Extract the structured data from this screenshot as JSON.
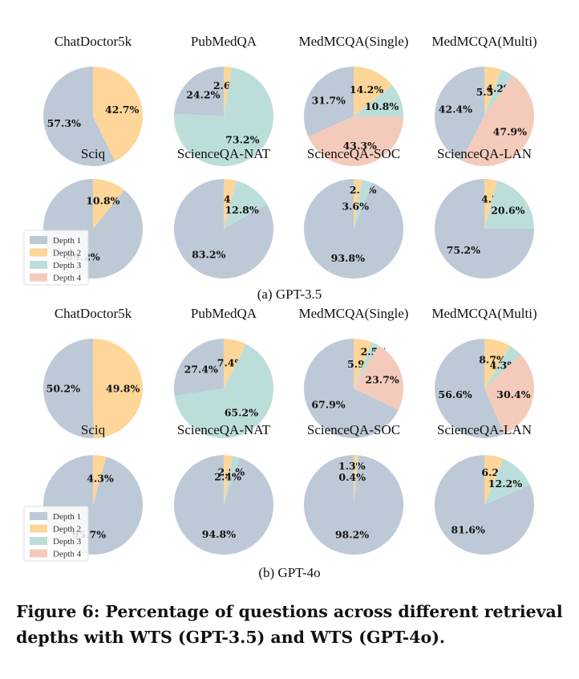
{
  "colors": {
    "Depth 1": "#bdc9d6",
    "Depth 2": "#fed699",
    "Depth 3": "#bcdedb",
    "Depth 4": "#f4cbbb"
  },
  "legend_labels": [
    "Depth 1",
    "Depth 2",
    "Depth 3",
    "Depth 4"
  ],
  "subcaptions": [
    "(a)  GPT-3.5",
    "(b)  GPT-4o"
  ],
  "caption": "Figure 6: Percentage of questions across different retrieval depths with WTS (GPT-3.5) and WTS (GPT-4o).",
  "chart_data": [
    {
      "type": "pie",
      "group": "GPT-3.5",
      "title": "ChatDoctor5k",
      "labels": [
        "Depth 1",
        "Depth 2"
      ],
      "values": [
        57.3,
        42.7
      ],
      "value_labels": [
        "57.3%",
        "42.7%"
      ]
    },
    {
      "type": "pie",
      "group": "GPT-3.5",
      "title": "PubMedQA",
      "labels": [
        "Depth 1",
        "Depth 2",
        "Depth 3"
      ],
      "values": [
        24.2,
        2.6,
        73.2
      ],
      "value_labels": [
        "24.2%",
        "2.6%",
        "73.2%"
      ]
    },
    {
      "type": "pie",
      "group": "GPT-3.5",
      "title": "MedMCQA(Single)",
      "labels": [
        "Depth 1",
        "Depth 2",
        "Depth 3",
        "Depth 4"
      ],
      "values": [
        31.7,
        14.2,
        10.8,
        43.3
      ],
      "value_labels": [
        "31.7%",
        "14.2%",
        "10.8%",
        "43.3%"
      ]
    },
    {
      "type": "pie",
      "group": "GPT-3.5",
      "title": "MedMCQA(Multi)",
      "labels": [
        "Depth 1",
        "Depth 2",
        "Depth 3",
        "Depth 4"
      ],
      "values": [
        42.4,
        5.5,
        4.2,
        47.9
      ],
      "value_labels": [
        "42.4%",
        "5.5%",
        "4.2%",
        "47.9%"
      ]
    },
    {
      "type": "pie",
      "group": "GPT-3.5",
      "title": "Sciq",
      "labels": [
        "Depth 1",
        "Depth 2"
      ],
      "values": [
        89.2,
        10.8
      ],
      "value_labels": [
        "89.2%",
        "10.8%"
      ],
      "legend": "lower-left"
    },
    {
      "type": "pie",
      "group": "GPT-3.5",
      "title": "ScienceQA-NAT",
      "labels": [
        "Depth 1",
        "Depth 2",
        "Depth 3"
      ],
      "values": [
        83.2,
        4.0,
        12.8
      ],
      "value_labels": [
        "83.2%",
        "4.0%",
        "12.8%"
      ]
    },
    {
      "type": "pie",
      "group": "GPT-3.5",
      "title": "ScienceQA-SOC",
      "labels": [
        "Depth 1",
        "Depth 2",
        "Depth 3"
      ],
      "values": [
        93.8,
        2.6,
        3.6
      ],
      "value_labels": [
        "93.8%",
        "2.6%",
        "3.6%"
      ]
    },
    {
      "type": "pie",
      "group": "GPT-3.5",
      "title": "ScienceQA-LAN",
      "labels": [
        "Depth 1",
        "Depth 2",
        "Depth 3"
      ],
      "values": [
        75.2,
        4.2,
        20.6
      ],
      "value_labels": [
        "75.2%",
        "4.2%",
        "20.6%"
      ]
    },
    {
      "type": "pie",
      "group": "GPT-4o",
      "title": "ChatDoctor5k",
      "labels": [
        "Depth 1",
        "Depth 2"
      ],
      "values": [
        50.2,
        49.8
      ],
      "value_labels": [
        "50.2%",
        "49.8%"
      ]
    },
    {
      "type": "pie",
      "group": "GPT-4o",
      "title": "PubMedQA",
      "labels": [
        "Depth 1",
        "Depth 2",
        "Depth 3"
      ],
      "values": [
        27.4,
        7.4,
        65.2
      ],
      "value_labels": [
        "27.4%",
        "7.4%",
        "65.2%"
      ]
    },
    {
      "type": "pie",
      "group": "GPT-4o",
      "title": "MedMCQA(Single)",
      "labels": [
        "Depth 1",
        "Depth 2",
        "Depth 3",
        "Depth 4"
      ],
      "values": [
        67.9,
        5.9,
        2.5,
        23.7
      ],
      "value_labels": [
        "67.9%",
        "5.9%",
        "2.5%",
        "23.7%"
      ]
    },
    {
      "type": "pie",
      "group": "GPT-4o",
      "title": "MedMCQA(Multi)",
      "labels": [
        "Depth 1",
        "Depth 2",
        "Depth 3",
        "Depth 4"
      ],
      "values": [
        56.6,
        8.7,
        4.3,
        30.4
      ],
      "value_labels": [
        "56.6%",
        "8.7%",
        "4.3%",
        "30.4%"
      ]
    },
    {
      "type": "pie",
      "group": "GPT-4o",
      "title": "Sciq",
      "labels": [
        "Depth 1",
        "Depth 2"
      ],
      "values": [
        95.7,
        4.3
      ],
      "value_labels": [
        "95.7%",
        "4.3%"
      ],
      "legend": "lower-left"
    },
    {
      "type": "pie",
      "group": "GPT-4o",
      "title": "ScienceQA-NAT",
      "labels": [
        "Depth 1",
        "Depth 2",
        "Depth 3"
      ],
      "values": [
        94.8,
        2.8,
        2.4
      ],
      "value_labels": [
        "94.8%",
        "2.8%",
        "2.4%"
      ]
    },
    {
      "type": "pie",
      "group": "GPT-4o",
      "title": "ScienceQA-SOC",
      "labels": [
        "Depth 1",
        "Depth 2",
        "Depth 3"
      ],
      "values": [
        98.2,
        1.3,
        0.4
      ],
      "value_labels": [
        "98.2%",
        "1.3%",
        "0.4%"
      ]
    },
    {
      "type": "pie",
      "group": "GPT-4o",
      "title": "ScienceQA-LAN",
      "labels": [
        "Depth 1",
        "Depth 2",
        "Depth 3"
      ],
      "values": [
        81.6,
        6.2,
        12.2
      ],
      "value_labels": [
        "81.6%",
        "6.2%",
        "12.2%"
      ]
    }
  ]
}
